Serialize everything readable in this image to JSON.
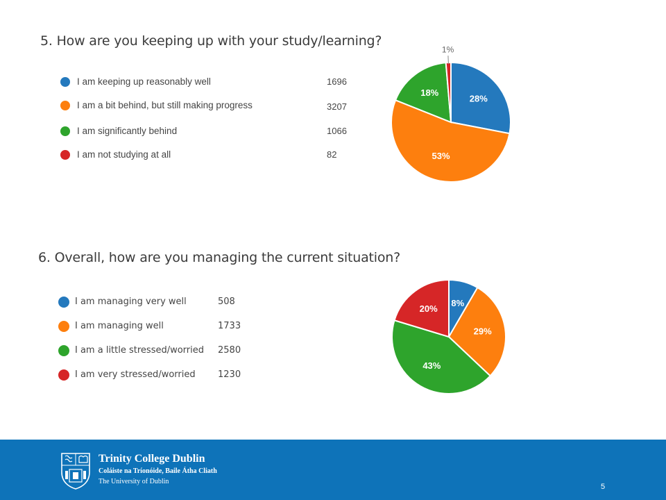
{
  "chart_data": [
    {
      "type": "pie",
      "title": "5.  How are you keeping up with your study/learning?",
      "categories": [
        "I am keeping up reasonably well",
        "I am a bit behind, but still making progress",
        "I am significantly behind",
        "I am not studying at all"
      ],
      "values": [
        1696,
        3207,
        1066,
        82
      ],
      "labels": [
        "28%",
        "53%",
        "18%",
        "1%"
      ],
      "colors": [
        "#2479bd",
        "#fd7f0e",
        "#2ea42c",
        "#d62627"
      ],
      "legend": "left"
    },
    {
      "type": "pie",
      "title": "6.  Overall, how are you managing the current situation?",
      "categories": [
        "I am managing very well",
        "I am managing well",
        "I am a little stressed/worried",
        "I am very stressed/worried"
      ],
      "values": [
        508,
        1733,
        2580,
        1230
      ],
      "labels": [
        "8%",
        "29%",
        "43%",
        "20%"
      ],
      "colors": [
        "#2479bd",
        "#fd7f0e",
        "#2ea42c",
        "#d62627"
      ],
      "legend": "left"
    }
  ],
  "footer": {
    "brand_name": "Trinity College Dublin",
    "brand_irish": "Coláiste na Tríonóide, Baile Átha Cliath",
    "brand_sub": "The University of Dublin",
    "page_number": "5",
    "logo_icon": "tcd-crest-icon"
  }
}
